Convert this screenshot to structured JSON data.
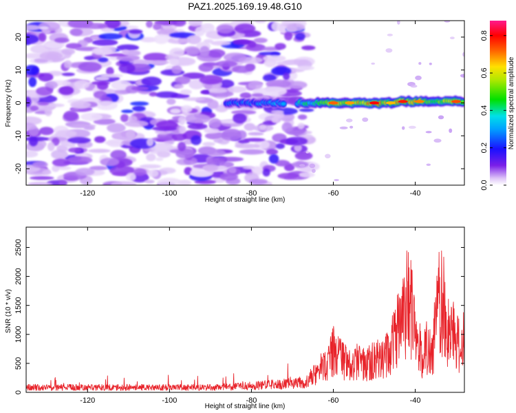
{
  "figure": {
    "title": "PAZ1.2025.169.19.48.G10"
  },
  "chart_data": [
    {
      "type": "heatmap",
      "title": "PAZ1.2025.169.19.48.G10",
      "xlabel": "Height of straight line (km)",
      "ylabel": "Frequency (Hz)",
      "xlim": [
        -135,
        -28
      ],
      "ylim": [
        -25,
        25
      ],
      "xticks": [
        -120,
        -100,
        -80,
        -60,
        -40
      ],
      "yticks": [
        -20,
        -10,
        0,
        10,
        20
      ],
      "colorbar": {
        "label": "Normalized spectral amplitude",
        "range": [
          0,
          0.88
        ],
        "ticks": [
          "0.0",
          "0.2",
          "0.4",
          "0.6",
          "0.8"
        ],
        "colormap": "rainbow-pink"
      },
      "ridge": {
        "frequency": 0.0,
        "x_start": -86,
        "x_end": -28,
        "peak_amplitudes": [
          {
            "x": -84,
            "amp": 0.3
          },
          {
            "x": -77,
            "amp": 0.32
          },
          {
            "x": -66,
            "amp": 0.45
          },
          {
            "x": -60,
            "amp": 0.72
          },
          {
            "x": -56,
            "amp": 0.68
          },
          {
            "x": -50,
            "amp": 0.8
          },
          {
            "x": -46,
            "amp": 0.66
          },
          {
            "x": -43,
            "amp": 0.78
          },
          {
            "x": -39,
            "amp": 0.7
          },
          {
            "x": -35,
            "amp": 0.6
          },
          {
            "x": -30,
            "amp": 0.74
          }
        ]
      },
      "background_noise_extent": [
        -135,
        -69
      ],
      "background_noise_amplitude": 0.15
    },
    {
      "type": "line",
      "xlabel": "Height of straight line (km)",
      "ylabel": "SNR (10 * v/v)",
      "xlim": [
        -135,
        -28
      ],
      "ylim": [
        0,
        2850
      ],
      "xticks": [
        -120,
        -100,
        -80,
        -60,
        -40
      ],
      "yticks": [
        0,
        500,
        1000,
        1500,
        2000,
        2500
      ],
      "series": [
        {
          "color": "#e8232a",
          "envelope_x": [
            -135,
            -125,
            -115,
            -105,
            -95,
            -85,
            -80,
            -76,
            -73,
            -70,
            -67,
            -65,
            -63,
            -61,
            -60,
            -58,
            -56,
            -54,
            -52,
            -50,
            -48,
            -46,
            -45,
            -44,
            -43,
            -42,
            -41,
            -40,
            -39,
            -38,
            -37,
            -36,
            -35,
            -34,
            -33,
            -32,
            -31,
            -30,
            -28
          ],
          "envelope_y": [
            100,
            100,
            100,
            100,
            100,
            110,
            130,
            150,
            170,
            200,
            280,
            420,
            650,
            850,
            1050,
            820,
            700,
            800,
            650,
            880,
            800,
            1100,
            1350,
            1700,
            1900,
            2450,
            2200,
            1400,
            1150,
            900,
            1200,
            950,
            1700,
            2450,
            2200,
            1600,
            1550,
            1250,
            1300
          ]
        }
      ]
    }
  ]
}
